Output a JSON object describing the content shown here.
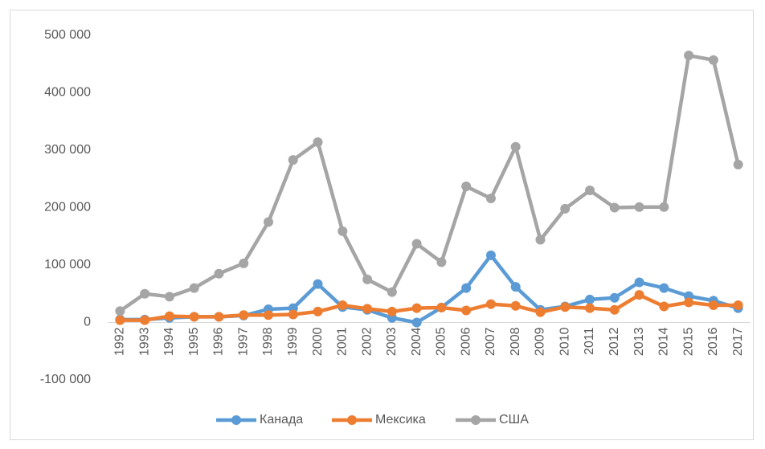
{
  "chart_data": {
    "type": "line",
    "categories": [
      "1992",
      "1993",
      "1994",
      "1995",
      "1996",
      "1997",
      "1998",
      "1999",
      "2000",
      "2001",
      "2002",
      "2003",
      "2004",
      "2005",
      "2006",
      "2007",
      "2008",
      "2009",
      "2010",
      "2011",
      "2012",
      "2013",
      "2014",
      "2015",
      "2016",
      "2017"
    ],
    "series": [
      {
        "name": "Канада",
        "color": "#5b9bd5",
        "values": [
          5000,
          5000,
          8000,
          10000,
          10000,
          12000,
          23000,
          25000,
          67000,
          27000,
          22000,
          8000,
          0,
          26000,
          60000,
          117000,
          62000,
          22000,
          28000,
          40000,
          43000,
          70000,
          60000,
          46000,
          38000,
          25000
        ]
      },
      {
        "name": "Мексика",
        "color": "#ed7d31",
        "values": [
          4000,
          4000,
          11000,
          10000,
          10000,
          13000,
          13000,
          14000,
          19000,
          30000,
          24000,
          19000,
          25000,
          26000,
          21000,
          32000,
          29000,
          18000,
          27000,
          25000,
          22000,
          48000,
          28000,
          35000,
          30000,
          30000
        ]
      },
      {
        "name": "США",
        "color": "#a5a5a5",
        "values": [
          20000,
          50000,
          45000,
          60000,
          85000,
          103000,
          175000,
          283000,
          314000,
          159000,
          75000,
          53000,
          137000,
          105000,
          237000,
          216000,
          306000,
          144000,
          198000,
          230000,
          200000,
          201000,
          201000,
          465000,
          457000,
          275000
        ]
      }
    ],
    "ylim": [
      -100000,
      500000
    ],
    "yticks": [
      {
        "value": -100000,
        "label": "-100 000"
      },
      {
        "value": 0,
        "label": "0"
      },
      {
        "value": 100000,
        "label": "100 000"
      },
      {
        "value": 200000,
        "label": "200 000"
      },
      {
        "value": 300000,
        "label": "300 000"
      },
      {
        "value": 400000,
        "label": "400 000"
      },
      {
        "value": 500000,
        "label": "500 000"
      }
    ],
    "grid": false,
    "legend": "bottom"
  }
}
